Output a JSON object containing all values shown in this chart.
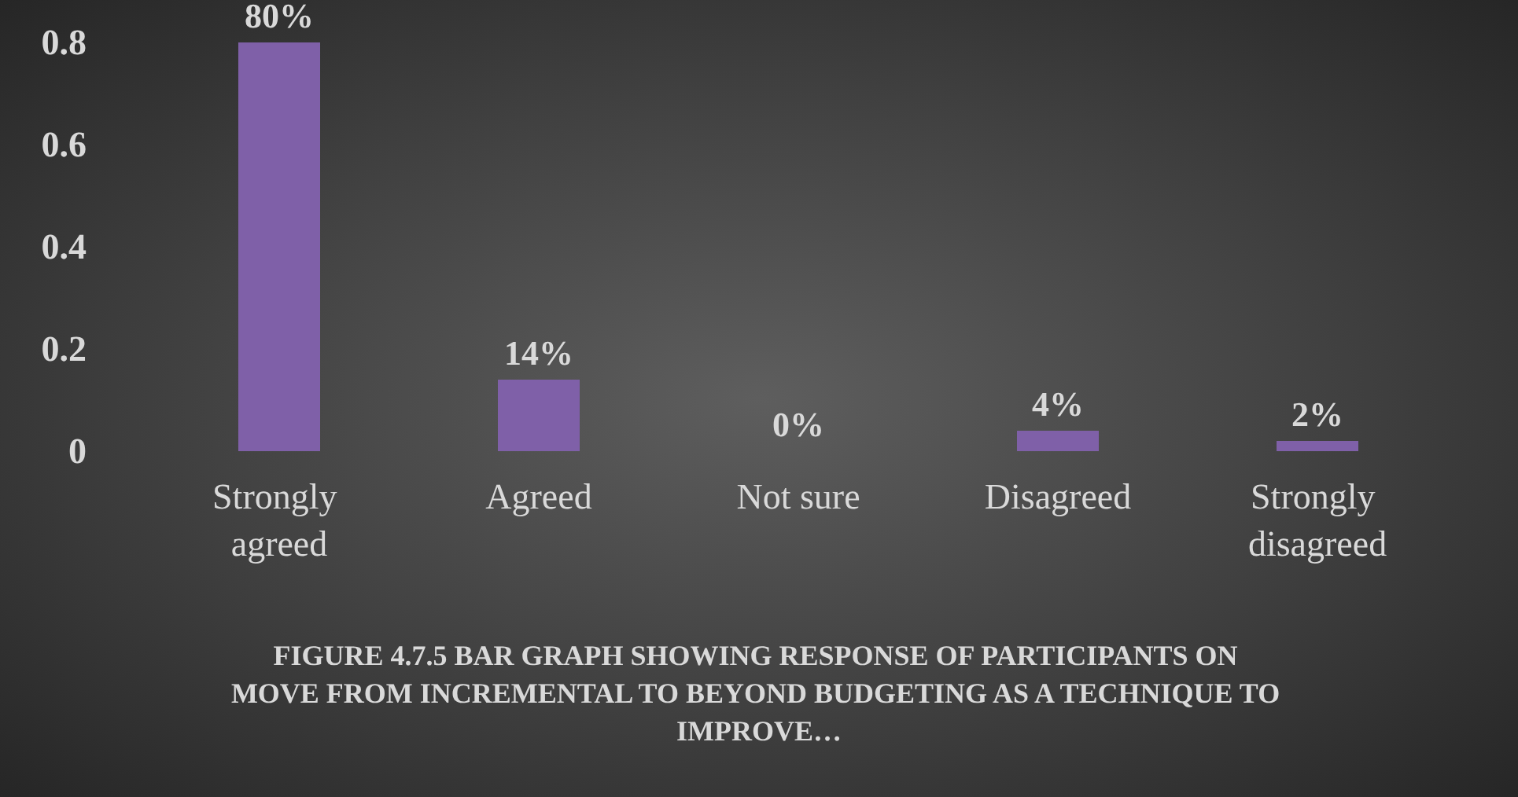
{
  "chart_data": {
    "type": "bar",
    "title": "FIGURE 4.7.5 BAR GRAPH SHOWING RESPONSE OF PARTICIPANTS ON MOVE FROM INCREMENTAL TO BEYOND BUDGETING AS A TECHNIQUE TO IMPROVE…",
    "categories": [
      "Strongly agreed",
      "Agreed",
      "Not sure",
      "Disagreed",
      "Strongly disagreed"
    ],
    "values": [
      0.8,
      0.14,
      0,
      0.04,
      0.02
    ],
    "value_labels": [
      "80%",
      "14%",
      "0%",
      "4%",
      "2%"
    ],
    "color": "#7f60a8",
    "ylim": [
      0,
      0.8
    ],
    "yticks": [
      0,
      0.2,
      0.4,
      0.6,
      0.8
    ],
    "grid": false
  }
}
